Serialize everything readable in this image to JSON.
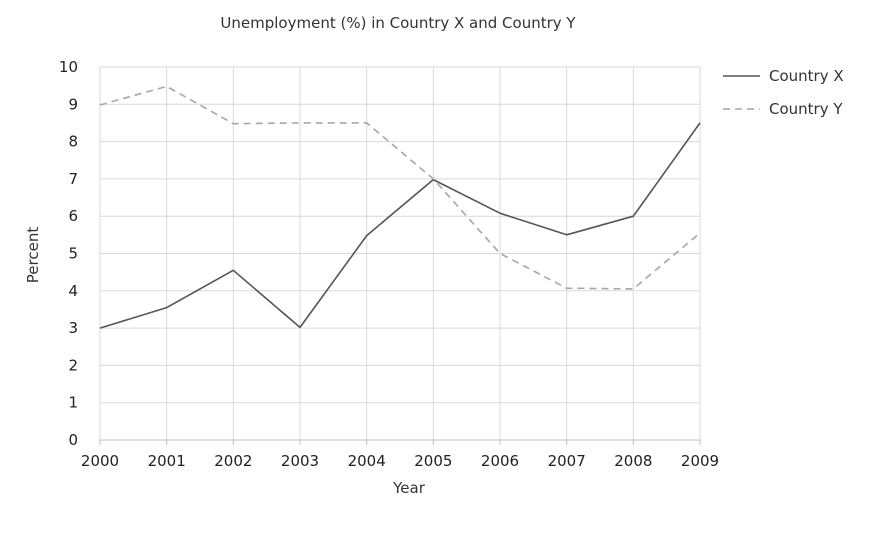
{
  "chart_data": {
    "type": "line",
    "title": "Unemployment (%) in Country X and Country Y",
    "xlabel": "Year",
    "ylabel": "Percent",
    "x": [
      "2000",
      "2001",
      "2002",
      "2003",
      "2004",
      "2005",
      "2006",
      "2007",
      "2008",
      "2009"
    ],
    "ylim": [
      0,
      10
    ],
    "yticks": [
      "0",
      "1",
      "2",
      "3",
      "4",
      "5",
      "6",
      "7",
      "8",
      "9",
      "10"
    ],
    "grid": true,
    "legend_position": "right-top",
    "series": [
      {
        "name": "Country X",
        "values": [
          3.0,
          3.55,
          4.55,
          3.02,
          5.48,
          6.98,
          6.08,
          5.5,
          6.0,
          8.5
        ],
        "color": "#555555",
        "dash": "solid"
      },
      {
        "name": "Country Y",
        "values": [
          8.98,
          9.48,
          8.48,
          8.5,
          8.5,
          7.0,
          5.0,
          4.07,
          4.05,
          5.55
        ],
        "color": "#a6a6a6",
        "dash": "dashed"
      }
    ]
  }
}
